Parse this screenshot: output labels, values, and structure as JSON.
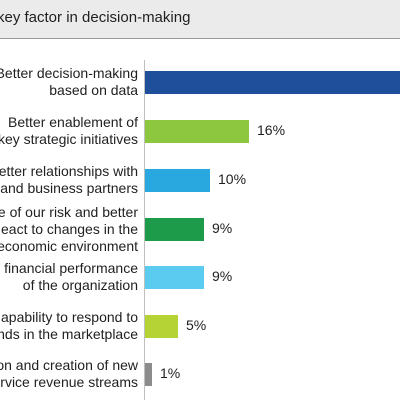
{
  "header": {
    "title": "key factor in decision-making"
  },
  "chart_data": {
    "type": "bar",
    "orientation": "horizontal",
    "categories": [
      [
        "Better decision-making",
        "based on data"
      ],
      [
        "Better enablement of",
        "key strategic initiatives"
      ],
      [
        "etter relationships with",
        "and business partners"
      ],
      [
        "e of our risk and better",
        "eact to changes in the",
        "economic environment"
      ],
      [
        "financial performance",
        "of the organization"
      ],
      [
        "apability to respond to",
        "nds in the marketplace"
      ],
      [
        "on and creation of new",
        "rvice revenue streams"
      ]
    ],
    "values": [
      null,
      16,
      10,
      9,
      9,
      5,
      1
    ],
    "value_labels": [
      "",
      "16%",
      "10%",
      "9%",
      "9%",
      "5%",
      "1%"
    ],
    "colors": [
      "#1f4e9a",
      "#8dc63f",
      "#29a8e0",
      "#1e9a4b",
      "#5ccbf0",
      "#b5d334",
      "#8c8c8c"
    ],
    "x_scale_px_per_unit": 6.5,
    "grid": false,
    "legend": "none"
  }
}
